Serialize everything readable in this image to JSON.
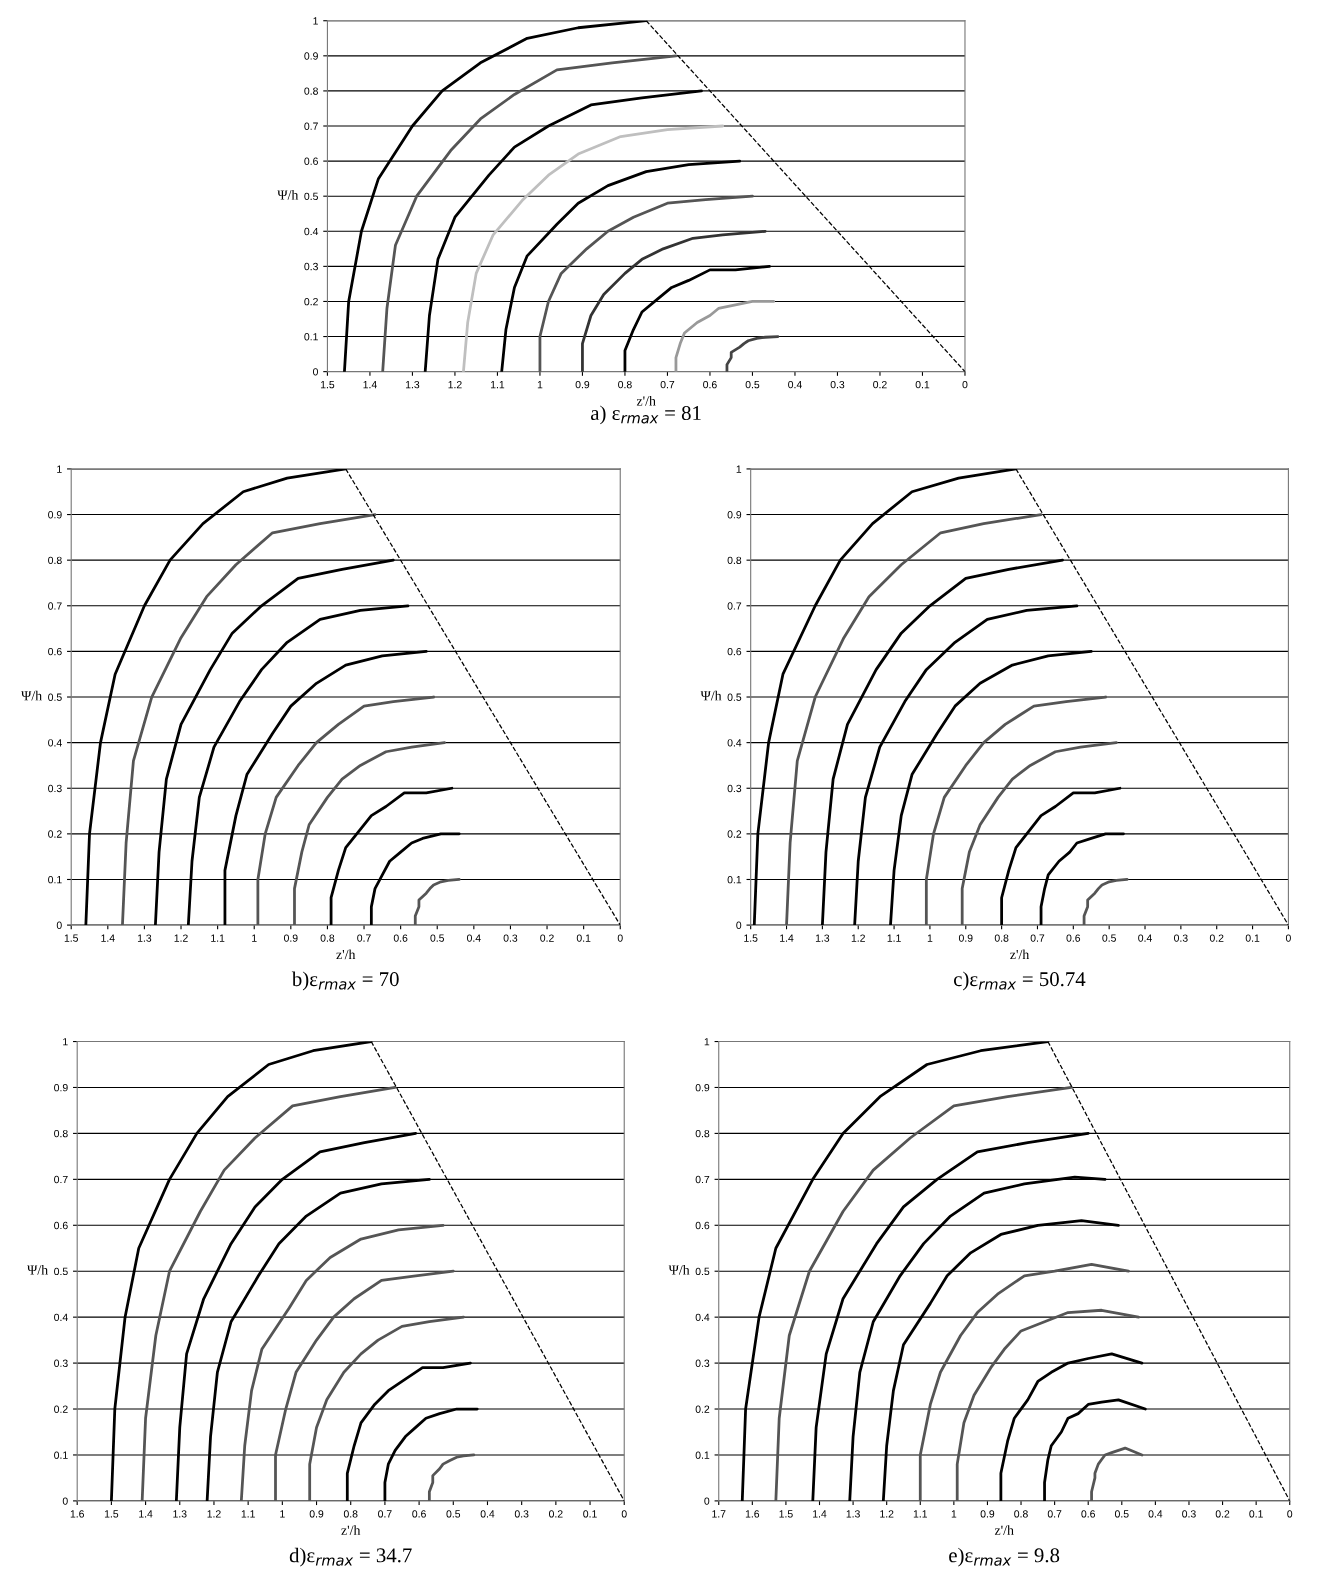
{
  "chart_data": [
    {
      "type": "line",
      "title": "a) ε$_{rmax}$ = 81",
      "xlabel": "z'/h",
      "ylabel": "Ψ/h",
      "xlim": [
        1.5,
        0
      ],
      "xticks": [
        1.5,
        1.4,
        1.3,
        1.2,
        1.1,
        1,
        0.9,
        0.8,
        0.7,
        0.6,
        0.5,
        0.4,
        0.3,
        0.2,
        0.1,
        0
      ],
      "ylim": [
        0,
        1
      ],
      "yticks": [
        0,
        0.1,
        0.2,
        0.3,
        0.4,
        0.5,
        0.6,
        0.7,
        0.8,
        0.9,
        1
      ],
      "grid": "y",
      "series": [
        {
          "color": "#000000",
          "x": [
            1.46,
            1.45,
            1.42,
            1.38,
            1.3,
            1.23,
            1.14,
            1.03,
            0.91,
            0.75
          ],
          "values": [
            0,
            0.2,
            0.4,
            0.55,
            0.7,
            0.8,
            0.88,
            0.95,
            0.98,
            1
          ]
        },
        {
          "color": "#555555",
          "x": [
            1.37,
            1.36,
            1.34,
            1.29,
            1.21,
            1.14,
            1.06,
            0.96,
            0.83,
            0.68
          ],
          "values": [
            0,
            0.18,
            0.36,
            0.5,
            0.63,
            0.72,
            0.79,
            0.86,
            0.88,
            0.9
          ]
        },
        {
          "color": "#000000",
          "x": [
            1.27,
            1.26,
            1.24,
            1.2,
            1.12,
            1.06,
            0.98,
            0.88,
            0.76,
            0.62
          ],
          "values": [
            0,
            0.16,
            0.32,
            0.44,
            0.56,
            0.64,
            0.7,
            0.76,
            0.78,
            0.8
          ]
        },
        {
          "color": "#bfbfbf",
          "x": [
            1.18,
            1.17,
            1.15,
            1.11,
            1.04,
            0.98,
            0.91,
            0.81,
            0.7,
            0.57
          ],
          "values": [
            0,
            0.14,
            0.28,
            0.39,
            0.49,
            0.56,
            0.62,
            0.67,
            0.69,
            0.7
          ]
        },
        {
          "color": "#000000",
          "x": [
            1.09,
            1.08,
            1.06,
            1.03,
            0.96,
            0.91,
            0.84,
            0.75,
            0.65,
            0.53
          ],
          "values": [
            0,
            0.12,
            0.24,
            0.33,
            0.42,
            0.48,
            0.53,
            0.57,
            0.59,
            0.6
          ]
        },
        {
          "color": "#555555",
          "x": [
            1.0,
            1.0,
            0.98,
            0.95,
            0.89,
            0.84,
            0.78,
            0.7,
            0.61,
            0.5
          ],
          "values": [
            0,
            0.1,
            0.2,
            0.28,
            0.35,
            0.4,
            0.44,
            0.48,
            0.49,
            0.5
          ]
        },
        {
          "color": "#333333",
          "x": [
            0.9,
            0.9,
            0.88,
            0.85,
            0.8,
            0.76,
            0.71,
            0.64,
            0.57,
            0.47
          ],
          "values": [
            0,
            0.08,
            0.16,
            0.22,
            0.28,
            0.32,
            0.35,
            0.38,
            0.39,
            0.4
          ]
        },
        {
          "color": "#000000",
          "x": [
            0.8,
            0.8,
            0.78,
            0.76,
            0.72,
            0.69,
            0.65,
            0.6,
            0.54,
            0.46
          ],
          "values": [
            0,
            0.06,
            0.12,
            0.17,
            0.21,
            0.24,
            0.26,
            0.29,
            0.29,
            0.3
          ]
        },
        {
          "color": "#999999",
          "x": [
            0.68,
            0.68,
            0.67,
            0.66,
            0.63,
            0.6,
            0.58,
            0.54,
            0.5,
            0.45
          ],
          "values": [
            0,
            0.04,
            0.08,
            0.11,
            0.14,
            0.16,
            0.18,
            0.19,
            0.2,
            0.2
          ]
        },
        {
          "color": "#444444",
          "x": [
            0.56,
            0.56,
            0.55,
            0.55,
            0.53,
            0.52,
            0.51,
            0.49,
            0.47,
            0.44
          ],
          "values": [
            0,
            0.02,
            0.04,
            0.055,
            0.07,
            0.08,
            0.088,
            0.095,
            0.098,
            0.1
          ]
        },
        {
          "color": "#000000",
          "line_style": "dashed",
          "x": [
            0.75,
            0
          ],
          "values": [
            1,
            0
          ]
        }
      ]
    },
    {
      "type": "line",
      "title": "b)ε$_{rmax}$ = 70",
      "xlabel": "z'/h",
      "ylabel": "Ψ/h",
      "xlim": [
        1.5,
        0
      ],
      "xticks": [
        1.5,
        1.4,
        1.3,
        1.2,
        1.1,
        1,
        0.9,
        0.8,
        0.7,
        0.6,
        0.5,
        0.4,
        0.3,
        0.2,
        0.1,
        0
      ],
      "ylim": [
        0,
        1
      ],
      "yticks": [
        0,
        0.1,
        0.2,
        0.3,
        0.4,
        0.5,
        0.6,
        0.7,
        0.8,
        0.9,
        1
      ],
      "grid": "y",
      "series": [
        {
          "color": "#000000",
          "x": [
            1.46,
            1.45,
            1.42,
            1.38,
            1.3,
            1.23,
            1.14,
            1.03,
            0.91,
            0.75
          ],
          "values": [
            0,
            0.2,
            0.4,
            0.55,
            0.7,
            0.8,
            0.88,
            0.95,
            0.98,
            1
          ]
        },
        {
          "color": "#555555",
          "x": [
            1.36,
            1.35,
            1.33,
            1.28,
            1.2,
            1.13,
            1.05,
            0.95,
            0.82,
            0.67
          ],
          "values": [
            0,
            0.18,
            0.36,
            0.5,
            0.63,
            0.72,
            0.79,
            0.86,
            0.88,
            0.9
          ]
        },
        {
          "color": "#000000",
          "x": [
            1.27,
            1.26,
            1.24,
            1.2,
            1.12,
            1.06,
            0.98,
            0.88,
            0.76,
            0.62
          ],
          "values": [
            0,
            0.16,
            0.32,
            0.44,
            0.56,
            0.64,
            0.7,
            0.76,
            0.78,
            0.8
          ]
        },
        {
          "color": "#000000",
          "x": [
            1.18,
            1.17,
            1.15,
            1.11,
            1.04,
            0.98,
            0.91,
            0.82,
            0.71,
            0.58
          ],
          "values": [
            0,
            0.14,
            0.28,
            0.39,
            0.49,
            0.56,
            0.62,
            0.67,
            0.69,
            0.7
          ]
        },
        {
          "color": "#000000",
          "x": [
            1.08,
            1.08,
            1.05,
            1.02,
            0.95,
            0.9,
            0.83,
            0.75,
            0.65,
            0.53
          ],
          "values": [
            0,
            0.12,
            0.24,
            0.33,
            0.42,
            0.48,
            0.53,
            0.57,
            0.59,
            0.6
          ]
        },
        {
          "color": "#555555",
          "x": [
            0.99,
            0.99,
            0.97,
            0.94,
            0.88,
            0.83,
            0.77,
            0.7,
            0.62,
            0.51
          ],
          "values": [
            0,
            0.1,
            0.2,
            0.28,
            0.35,
            0.4,
            0.44,
            0.48,
            0.49,
            0.5
          ]
        },
        {
          "color": "#555555",
          "x": [
            0.89,
            0.89,
            0.87,
            0.85,
            0.8,
            0.76,
            0.71,
            0.64,
            0.57,
            0.48
          ],
          "values": [
            0,
            0.08,
            0.16,
            0.22,
            0.28,
            0.32,
            0.35,
            0.38,
            0.39,
            0.4
          ]
        },
        {
          "color": "#000000",
          "x": [
            0.79,
            0.79,
            0.77,
            0.75,
            0.71,
            0.68,
            0.64,
            0.59,
            0.53,
            0.46
          ],
          "values": [
            0,
            0.06,
            0.12,
            0.17,
            0.21,
            0.24,
            0.26,
            0.29,
            0.29,
            0.3
          ]
        },
        {
          "color": "#000000",
          "x": [
            0.68,
            0.68,
            0.67,
            0.65,
            0.63,
            0.6,
            0.57,
            0.54,
            0.49,
            0.44
          ],
          "values": [
            0,
            0.04,
            0.08,
            0.11,
            0.14,
            0.16,
            0.18,
            0.19,
            0.2,
            0.2
          ]
        },
        {
          "color": "#555555",
          "x": [
            0.56,
            0.56,
            0.55,
            0.55,
            0.53,
            0.52,
            0.51,
            0.49,
            0.47,
            0.44
          ],
          "values": [
            0,
            0.02,
            0.04,
            0.055,
            0.07,
            0.08,
            0.088,
            0.095,
            0.098,
            0.1
          ]
        },
        {
          "color": "#000000",
          "line_style": "dashed",
          "x": [
            0.75,
            0
          ],
          "values": [
            1,
            0
          ]
        }
      ]
    },
    {
      "type": "line",
      "title": "c)ε$_{rmax}$ = 50.74",
      "xlabel": "z'/h",
      "ylabel": "Ψ/h",
      "xlim": [
        1.5,
        0
      ],
      "xticks": [
        1.5,
        1.4,
        1.3,
        1.2,
        1.1,
        1,
        0.9,
        0.8,
        0.7,
        0.6,
        0.5,
        0.4,
        0.3,
        0.2,
        0.1,
        0
      ],
      "ylim": [
        0,
        1
      ],
      "yticks": [
        0,
        0.1,
        0.2,
        0.3,
        0.4,
        0.5,
        0.6,
        0.7,
        0.8,
        0.9,
        1
      ],
      "grid": "y",
      "series": [
        {
          "color": "#000000",
          "x": [
            1.49,
            1.48,
            1.45,
            1.41,
            1.32,
            1.25,
            1.16,
            1.05,
            0.92,
            0.76
          ],
          "values": [
            0,
            0.2,
            0.4,
            0.55,
            0.7,
            0.8,
            0.88,
            0.95,
            0.98,
            1
          ]
        },
        {
          "color": "#555555",
          "x": [
            1.4,
            1.39,
            1.37,
            1.32,
            1.24,
            1.17,
            1.08,
            0.97,
            0.85,
            0.69
          ],
          "values": [
            0,
            0.18,
            0.36,
            0.5,
            0.63,
            0.72,
            0.79,
            0.86,
            0.88,
            0.9
          ]
        },
        {
          "color": "#000000",
          "x": [
            1.3,
            1.29,
            1.27,
            1.23,
            1.15,
            1.08,
            1.0,
            0.9,
            0.78,
            0.63
          ],
          "values": [
            0,
            0.16,
            0.32,
            0.44,
            0.56,
            0.64,
            0.7,
            0.76,
            0.78,
            0.8
          ]
        },
        {
          "color": "#000000",
          "x": [
            1.21,
            1.2,
            1.18,
            1.14,
            1.07,
            1.01,
            0.93,
            0.84,
            0.73,
            0.59
          ],
          "values": [
            0,
            0.14,
            0.28,
            0.39,
            0.49,
            0.56,
            0.62,
            0.67,
            0.69,
            0.7
          ]
        },
        {
          "color": "#000000",
          "x": [
            1.11,
            1.1,
            1.08,
            1.05,
            0.98,
            0.93,
            0.86,
            0.77,
            0.67,
            0.55
          ],
          "values": [
            0,
            0.12,
            0.24,
            0.33,
            0.42,
            0.48,
            0.53,
            0.57,
            0.59,
            0.6
          ]
        },
        {
          "color": "#555555",
          "x": [
            1.01,
            1.01,
            0.99,
            0.96,
            0.9,
            0.85,
            0.79,
            0.71,
            0.62,
            0.51
          ],
          "values": [
            0,
            0.1,
            0.2,
            0.28,
            0.35,
            0.4,
            0.44,
            0.48,
            0.49,
            0.5
          ]
        },
        {
          "color": "#555555",
          "x": [
            0.91,
            0.91,
            0.89,
            0.86,
            0.81,
            0.77,
            0.72,
            0.65,
            0.58,
            0.48
          ],
          "values": [
            0,
            0.08,
            0.16,
            0.22,
            0.28,
            0.32,
            0.35,
            0.38,
            0.39,
            0.4
          ]
        },
        {
          "color": "#000000",
          "x": [
            0.8,
            0.8,
            0.78,
            0.76,
            0.72,
            0.69,
            0.65,
            0.6,
            0.54,
            0.47
          ],
          "values": [
            0,
            0.06,
            0.12,
            0.17,
            0.21,
            0.24,
            0.26,
            0.29,
            0.29,
            0.3
          ]
        },
        {
          "color": "#000000",
          "x": [
            0.69,
            0.69,
            0.68,
            0.67,
            0.64,
            0.61,
            0.59,
            0.55,
            0.51,
            0.46
          ],
          "values": [
            0,
            0.04,
            0.08,
            0.11,
            0.14,
            0.16,
            0.18,
            0.19,
            0.2,
            0.2
          ]
        },
        {
          "color": "#555555",
          "x": [
            0.57,
            0.57,
            0.56,
            0.56,
            0.54,
            0.53,
            0.52,
            0.5,
            0.48,
            0.45
          ],
          "values": [
            0,
            0.02,
            0.04,
            0.055,
            0.07,
            0.08,
            0.088,
            0.095,
            0.098,
            0.1
          ]
        },
        {
          "color": "#000000",
          "line_style": "dashed",
          "x": [
            0.76,
            0
          ],
          "values": [
            1,
            0
          ]
        }
      ]
    },
    {
      "type": "line",
      "title": "d)ε$_{rmax}$ = 34.7",
      "xlabel": "z'/h",
      "ylabel": "Ψ/h",
      "xlim": [
        1.6,
        0
      ],
      "xticks": [
        1.6,
        1.5,
        1.4,
        1.3,
        1.2,
        1.1,
        1,
        0.9,
        0.8,
        0.7,
        0.6,
        0.5,
        0.4,
        0.3,
        0.2,
        0.1,
        0
      ],
      "ylim": [
        0,
        1
      ],
      "yticks": [
        0,
        0.1,
        0.2,
        0.3,
        0.4,
        0.5,
        0.6,
        0.7,
        0.8,
        0.9,
        1
      ],
      "grid": "y",
      "series": [
        {
          "color": "#000000",
          "x": [
            1.5,
            1.49,
            1.46,
            1.42,
            1.33,
            1.25,
            1.16,
            1.04,
            0.91,
            0.74
          ],
          "values": [
            0,
            0.2,
            0.4,
            0.55,
            0.7,
            0.8,
            0.88,
            0.95,
            0.98,
            1
          ]
        },
        {
          "color": "#555555",
          "x": [
            1.41,
            1.4,
            1.37,
            1.33,
            1.24,
            1.17,
            1.08,
            0.97,
            0.83,
            0.67
          ],
          "values": [
            0,
            0.18,
            0.36,
            0.5,
            0.63,
            0.72,
            0.79,
            0.86,
            0.88,
            0.9
          ]
        },
        {
          "color": "#000000",
          "x": [
            1.31,
            1.3,
            1.28,
            1.23,
            1.15,
            1.08,
            1.0,
            0.89,
            0.76,
            0.61
          ],
          "values": [
            0,
            0.16,
            0.32,
            0.44,
            0.56,
            0.64,
            0.7,
            0.76,
            0.78,
            0.8
          ]
        },
        {
          "color": "#000000",
          "x": [
            1.22,
            1.21,
            1.19,
            1.15,
            1.07,
            1.01,
            0.93,
            0.83,
            0.71,
            0.57
          ],
          "values": [
            0,
            0.14,
            0.28,
            0.39,
            0.49,
            0.56,
            0.62,
            0.67,
            0.69,
            0.7
          ]
        },
        {
          "color": "#555555",
          "x": [
            1.12,
            1.11,
            1.09,
            1.06,
            0.98,
            0.93,
            0.86,
            0.77,
            0.66,
            0.53
          ],
          "values": [
            0,
            0.12,
            0.24,
            0.33,
            0.42,
            0.48,
            0.53,
            0.57,
            0.59,
            0.6
          ]
        },
        {
          "color": "#555555",
          "x": [
            1.02,
            1.02,
            0.99,
            0.96,
            0.9,
            0.85,
            0.79,
            0.71,
            0.61,
            0.5
          ],
          "values": [
            0,
            0.1,
            0.2,
            0.28,
            0.35,
            0.4,
            0.44,
            0.48,
            0.49,
            0.5
          ]
        },
        {
          "color": "#555555",
          "x": [
            0.92,
            0.92,
            0.9,
            0.87,
            0.82,
            0.77,
            0.72,
            0.65,
            0.57,
            0.47
          ],
          "values": [
            0,
            0.08,
            0.16,
            0.22,
            0.28,
            0.32,
            0.35,
            0.38,
            0.39,
            0.4
          ]
        },
        {
          "color": "#000000",
          "x": [
            0.81,
            0.81,
            0.79,
            0.77,
            0.73,
            0.69,
            0.65,
            0.59,
            0.53,
            0.45
          ],
          "values": [
            0,
            0.06,
            0.12,
            0.17,
            0.21,
            0.24,
            0.26,
            0.29,
            0.29,
            0.3
          ]
        },
        {
          "color": "#000000",
          "x": [
            0.7,
            0.7,
            0.69,
            0.67,
            0.64,
            0.61,
            0.58,
            0.54,
            0.49,
            0.43
          ],
          "values": [
            0,
            0.04,
            0.08,
            0.11,
            0.14,
            0.16,
            0.18,
            0.19,
            0.2,
            0.2
          ]
        },
        {
          "color": "#555555",
          "x": [
            0.57,
            0.57,
            0.56,
            0.56,
            0.54,
            0.53,
            0.51,
            0.49,
            0.47,
            0.44
          ],
          "values": [
            0,
            0.02,
            0.04,
            0.055,
            0.07,
            0.08,
            0.088,
            0.095,
            0.098,
            0.1
          ]
        },
        {
          "color": "#000000",
          "line_style": "dashed",
          "x": [
            0.74,
            0
          ],
          "values": [
            1,
            0
          ]
        }
      ]
    },
    {
      "type": "line",
      "title": "e)ε$_{rmax}$ = 9.8",
      "xlabel": "z'/h",
      "ylabel": "Ψ/h",
      "xlim": [
        1.7,
        0
      ],
      "xticks": [
        1.7,
        1.6,
        1.5,
        1.4,
        1.3,
        1.2,
        1.1,
        1,
        0.9,
        0.8,
        0.7,
        0.6,
        0.5,
        0.4,
        0.3,
        0.2,
        0.1,
        0
      ],
      "ylim": [
        0,
        1
      ],
      "yticks": [
        0,
        0.1,
        0.2,
        0.3,
        0.4,
        0.5,
        0.6,
        0.7,
        0.8,
        0.9,
        1
      ],
      "grid": "y",
      "series": [
        {
          "color": "#000000",
          "x": [
            1.63,
            1.62,
            1.58,
            1.53,
            1.42,
            1.33,
            1.22,
            1.08,
            0.92,
            0.72
          ],
          "values": [
            0,
            0.2,
            0.4,
            0.55,
            0.7,
            0.8,
            0.88,
            0.95,
            0.98,
            1
          ]
        },
        {
          "color": "#555555",
          "x": [
            1.53,
            1.52,
            1.49,
            1.43,
            1.33,
            1.24,
            1.13,
            1.0,
            0.84,
            0.65
          ],
          "values": [
            0,
            0.18,
            0.36,
            0.5,
            0.63,
            0.72,
            0.79,
            0.86,
            0.88,
            0.9
          ]
        },
        {
          "color": "#000000",
          "x": [
            1.42,
            1.41,
            1.38,
            1.33,
            1.23,
            1.15,
            1.05,
            0.93,
            0.78,
            0.6
          ],
          "values": [
            0,
            0.16,
            0.32,
            0.44,
            0.56,
            0.64,
            0.7,
            0.76,
            0.78,
            0.8
          ]
        },
        {
          "color": "#000000",
          "x": [
            1.31,
            1.3,
            1.28,
            1.24,
            1.16,
            1.09,
            1.01,
            0.91,
            0.79,
            0.64,
            0.55
          ],
          "values": [
            0,
            0.14,
            0.28,
            0.39,
            0.49,
            0.56,
            0.62,
            0.67,
            0.69,
            0.705,
            0.7
          ]
        },
        {
          "color": "#000000",
          "x": [
            1.21,
            1.2,
            1.18,
            1.15,
            1.07,
            1.02,
            0.95,
            0.86,
            0.75,
            0.62,
            0.51
          ],
          "values": [
            0,
            0.12,
            0.24,
            0.34,
            0.43,
            0.49,
            0.54,
            0.58,
            0.6,
            0.61,
            0.6
          ]
        },
        {
          "color": "#555555",
          "x": [
            1.1,
            1.1,
            1.07,
            1.04,
            0.98,
            0.93,
            0.87,
            0.79,
            0.7,
            0.59,
            0.48
          ],
          "values": [
            0,
            0.1,
            0.21,
            0.28,
            0.36,
            0.41,
            0.45,
            0.49,
            0.5,
            0.515,
            0.5
          ]
        },
        {
          "color": "#555555",
          "x": [
            0.99,
            0.99,
            0.97,
            0.94,
            0.89,
            0.85,
            0.8,
            0.73,
            0.66,
            0.56,
            0.45
          ],
          "values": [
            0,
            0.08,
            0.17,
            0.23,
            0.29,
            0.33,
            0.37,
            0.39,
            0.41,
            0.415,
            0.4
          ]
        },
        {
          "color": "#000000",
          "x": [
            0.86,
            0.86,
            0.84,
            0.82,
            0.78,
            0.75,
            0.71,
            0.66,
            0.6,
            0.53,
            0.44
          ],
          "values": [
            0,
            0.06,
            0.13,
            0.18,
            0.22,
            0.26,
            0.28,
            0.3,
            0.31,
            0.32,
            0.3
          ]
        },
        {
          "color": "#000000",
          "x": [
            0.73,
            0.73,
            0.72,
            0.71,
            0.68,
            0.66,
            0.63,
            0.6,
            0.56,
            0.51,
            0.43
          ],
          "values": [
            0,
            0.04,
            0.09,
            0.12,
            0.15,
            0.18,
            0.19,
            0.21,
            0.215,
            0.22,
            0.2
          ]
        },
        {
          "color": "#555555",
          "x": [
            0.59,
            0.59,
            0.58,
            0.58,
            0.57,
            0.56,
            0.55,
            0.53,
            0.51,
            0.49,
            0.44
          ],
          "values": [
            0,
            0.02,
            0.05,
            0.06,
            0.08,
            0.09,
            0.1,
            0.105,
            0.11,
            0.115,
            0.1
          ]
        },
        {
          "color": "#000000",
          "line_style": "dashed",
          "x": [
            0.72,
            0
          ],
          "values": [
            1,
            0
          ]
        }
      ]
    }
  ]
}
